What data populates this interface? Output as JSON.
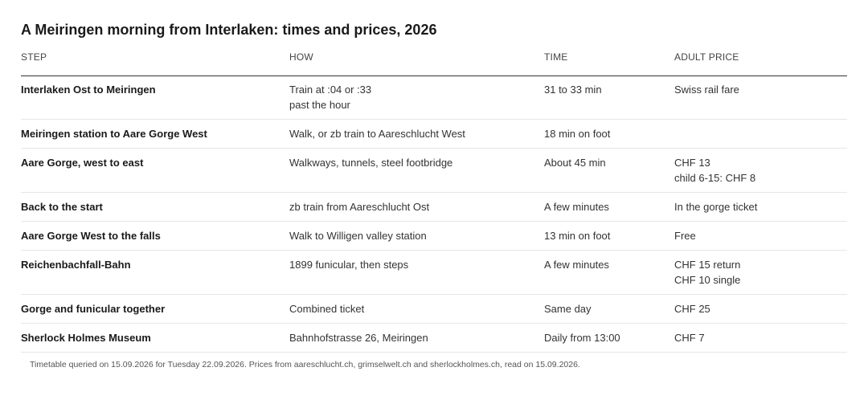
{
  "title": "A Meiringen morning from Interlaken: times and prices, 2026",
  "headers": {
    "step": "STEP",
    "how": "HOW",
    "time": "TIME",
    "price": "ADULT PRICE"
  },
  "rows": [
    {
      "step": "Interlaken Ost to Meiringen",
      "how": [
        "Train at :04 or :33",
        "past the hour"
      ],
      "time": "31 to 33 min",
      "price": [
        "Swiss rail fare"
      ]
    },
    {
      "step": "Meiringen station to Aare Gorge West",
      "how": [
        "Walk, or zb train to Aareschlucht West"
      ],
      "time": "18 min on foot",
      "price": []
    },
    {
      "step": "Aare Gorge, west to east",
      "how": [
        "Walkways, tunnels, steel footbridge"
      ],
      "time": "About 45 min",
      "price": [
        "CHF 13",
        "child 6-15: CHF 8"
      ]
    },
    {
      "step": "Back to the start",
      "how": [
        "zb train from Aareschlucht Ost"
      ],
      "time": "A few minutes",
      "price": [
        "In the gorge ticket"
      ]
    },
    {
      "step": "Aare Gorge West to the falls",
      "how": [
        "Walk to Willigen valley station"
      ],
      "time": "13 min on foot",
      "price": [
        "Free"
      ]
    },
    {
      "step": "Reichenbachfall-Bahn",
      "how": [
        "1899 funicular, then steps"
      ],
      "time": "A few minutes",
      "price": [
        "CHF 15 return",
        "CHF 10 single"
      ]
    },
    {
      "step": "Gorge and funicular together",
      "how": [
        "Combined ticket"
      ],
      "time": "Same day",
      "price": [
        "CHF 25"
      ]
    },
    {
      "step": "Sherlock Holmes Museum",
      "how": [
        "Bahnhofstrasse 26, Meiringen"
      ],
      "time": "Daily from 13:00",
      "price": [
        "CHF 7"
      ]
    }
  ],
  "footnote": "Timetable queried on 15.09.2026 for Tuesday 22.09.2026. Prices from aareschlucht.ch, grimselwelt.ch and sherlockholmes.ch, read on 15.09.2026."
}
